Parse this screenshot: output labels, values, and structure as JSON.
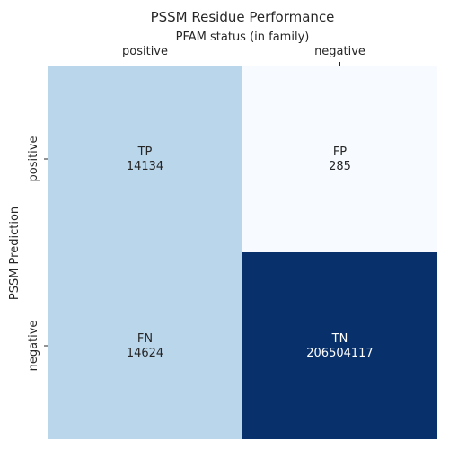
{
  "chart_data": {
    "type": "heatmap",
    "title": "PSSM Residue Performance",
    "xlabel": "PFAM status (in family)",
    "ylabel": "PSSM Prediction",
    "x_categories": [
      "positive",
      "negative"
    ],
    "y_categories": [
      "positive",
      "negative"
    ],
    "cells": [
      {
        "row": 0,
        "col": 0,
        "label": "TP",
        "value": 14134
      },
      {
        "row": 0,
        "col": 1,
        "label": "FP",
        "value": 285
      },
      {
        "row": 1,
        "col": 0,
        "label": "FN",
        "value": 14624
      },
      {
        "row": 1,
        "col": 1,
        "label": "TN",
        "value": 206504117
      }
    ],
    "colors": {
      "TP": "#bad6eb",
      "FP": "#f7fbff",
      "FN": "#bad6eb",
      "TN": "#08306b"
    },
    "text_colors": {
      "TP": "#262626",
      "FP": "#262626",
      "FN": "#262626",
      "TN": "#ffffff"
    },
    "colormap": "Blues",
    "colorbar": false,
    "x_axis_position": "top"
  }
}
